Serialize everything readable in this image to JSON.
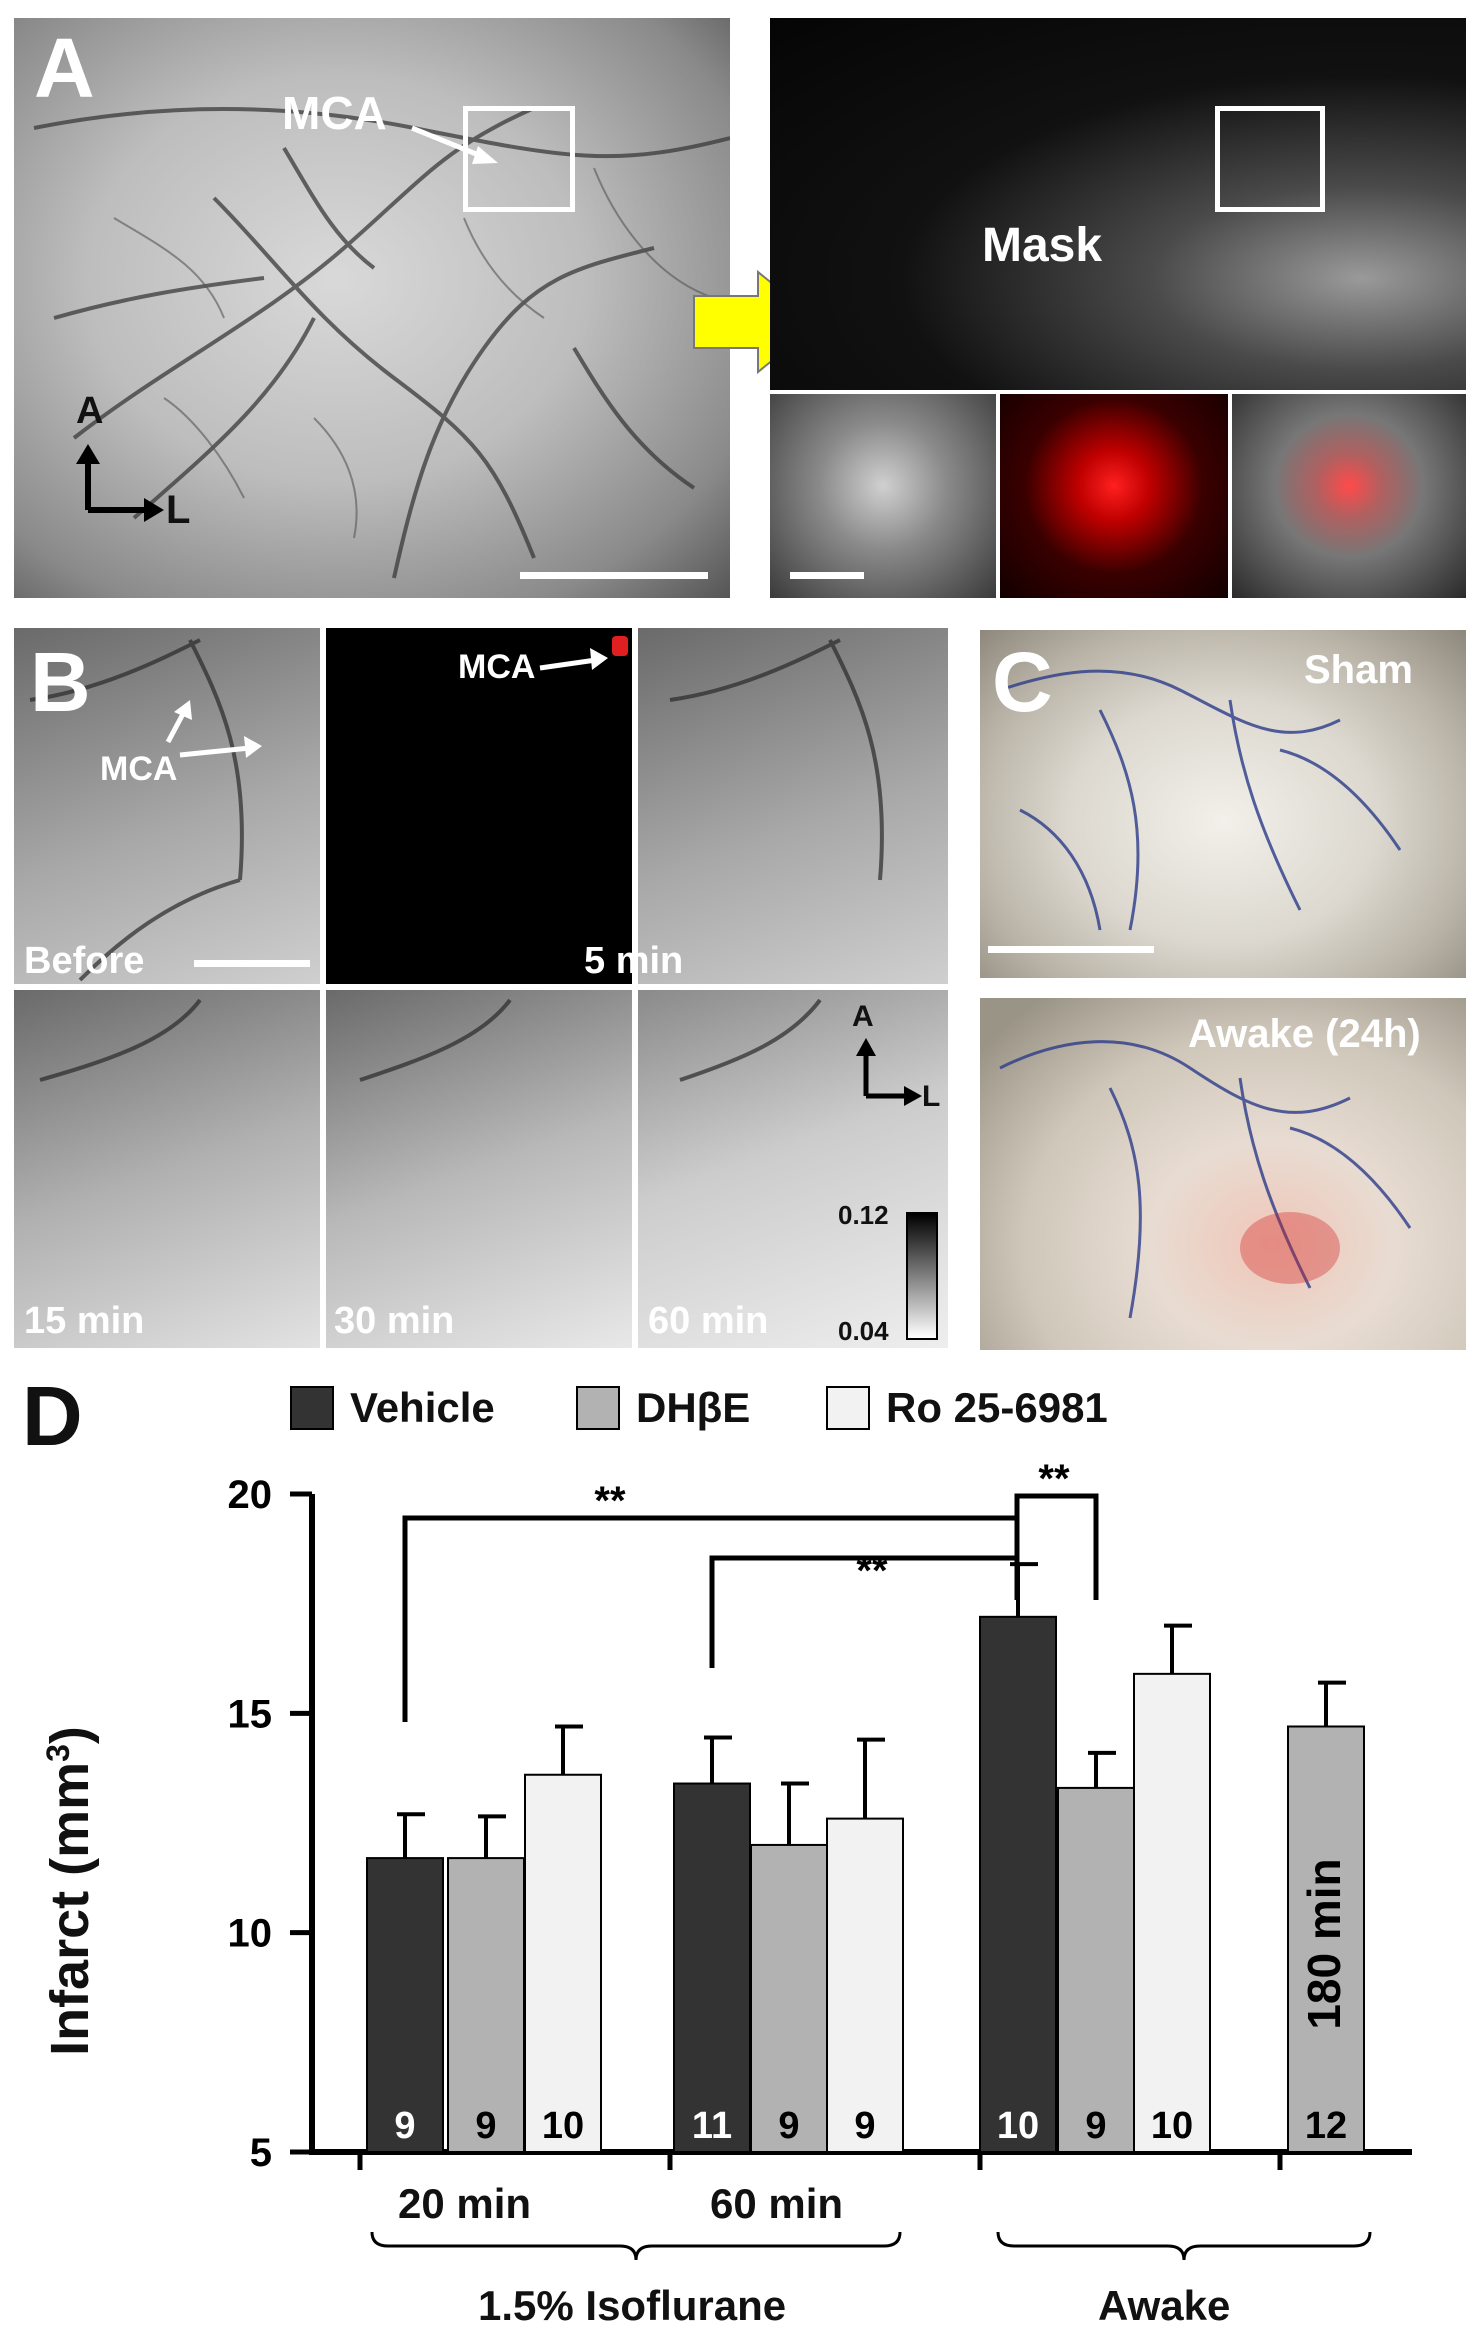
{
  "panel_a": {
    "letter": "A",
    "mca_label": "MCA",
    "mask_label": "Mask",
    "axis_a": "A",
    "axis_l": "L"
  },
  "panel_b": {
    "letter": "B",
    "mca_label_left": "MCA",
    "mca_label_right": "MCA",
    "frames": [
      "Before",
      "5 min",
      "15 min",
      "30 min",
      "60 min"
    ],
    "axis_a": "A",
    "axis_l": "L",
    "scale_max": "0.12",
    "scale_min": "0.04"
  },
  "panel_c": {
    "letter": "C",
    "top_label": "Sham",
    "bottom_label": "Awake (24h)"
  },
  "panel_d": {
    "letter": "D",
    "legend": [
      "Vehicle",
      "DHβE",
      "Ro 25-6981"
    ],
    "ylabel": "Infarct (mm",
    "ylabel_sup": "3",
    "ylabel_close": ")",
    "group_labels": [
      "20 min",
      "60 min"
    ],
    "bracket_labels": [
      "1.5% Isoflurane",
      "Awake"
    ],
    "bar_text": "180 min",
    "significance": [
      "**",
      "**",
      "**"
    ]
  },
  "colors": {
    "vehicle": "#333333",
    "dhbe": "#b2b2b2",
    "ro": "#f2f2f2",
    "arrow": "#ffff00"
  },
  "chart_data": {
    "type": "bar",
    "ylim": [
      5,
      20
    ],
    "yticks": [
      5,
      10,
      15,
      20
    ],
    "series": [
      {
        "name": "Vehicle",
        "values": [
          11.7,
          13.4,
          17.2
        ]
      },
      {
        "name": "DHβE",
        "values": [
          11.7,
          12.0,
          13.3,
          14.7
        ]
      },
      {
        "name": "Ro 25-6981",
        "values": [
          13.6,
          12.6,
          15.9
        ]
      }
    ],
    "bars": [
      {
        "group": "20 min",
        "series": "Vehicle",
        "value": 11.7,
        "err": 1.0,
        "n": "9"
      },
      {
        "group": "20 min",
        "series": "DHβE",
        "value": 11.7,
        "err": 0.95,
        "n": "9"
      },
      {
        "group": "20 min",
        "series": "Ro 25-6981",
        "value": 13.6,
        "err": 1.1,
        "n": "10"
      },
      {
        "group": "60 min",
        "series": "Vehicle",
        "value": 13.4,
        "err": 1.05,
        "n": "11"
      },
      {
        "group": "60 min",
        "series": "DHβE",
        "value": 12.0,
        "err": 1.4,
        "n": "9"
      },
      {
        "group": "60 min",
        "series": "Ro 25-6981",
        "value": 12.6,
        "err": 1.8,
        "n": "9"
      },
      {
        "group": "Awake",
        "series": "Vehicle",
        "value": 17.2,
        "err": 1.2,
        "n": "10"
      },
      {
        "group": "Awake",
        "series": "DHβE",
        "value": 13.3,
        "err": 0.8,
        "n": "9"
      },
      {
        "group": "Awake",
        "series": "Ro 25-6981",
        "value": 15.9,
        "err": 1.1,
        "n": "10"
      },
      {
        "group": "Awake 180 min",
        "series": "DHβE",
        "value": 14.7,
        "err": 1.0,
        "n": "12"
      }
    ]
  }
}
